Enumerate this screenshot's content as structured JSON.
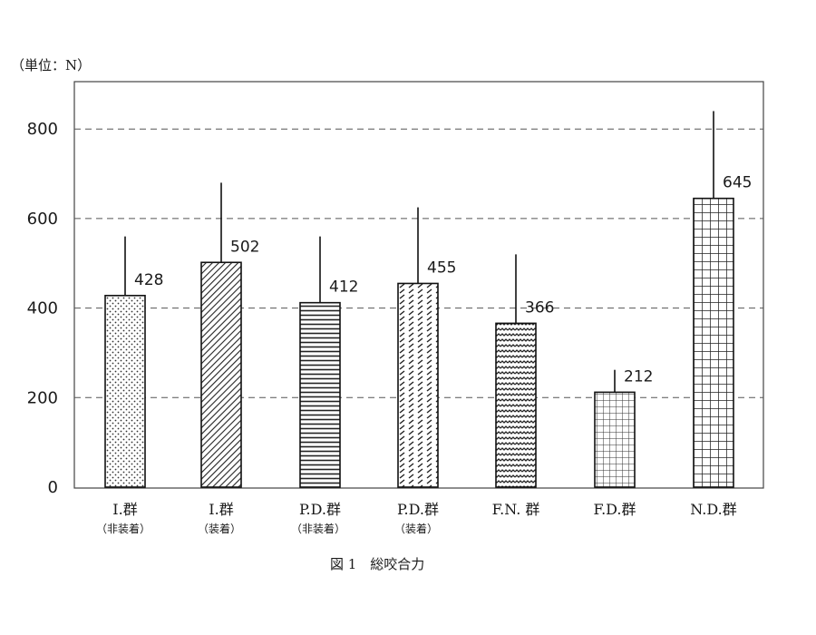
{
  "chart_data": {
    "type": "bar",
    "unit_label": "（単位：N）",
    "caption": "図 1　総咬合力",
    "ylim": [
      0,
      900
    ],
    "yticks": [
      0,
      200,
      400,
      600,
      800
    ],
    "grid": true,
    "categories": [
      {
        "label": "I.群",
        "sublabel": "（非装着）"
      },
      {
        "label": "I.群",
        "sublabel": "（装着）"
      },
      {
        "label": "P.D.群",
        "sublabel": "（非装着）"
      },
      {
        "label": "P.D.群",
        "sublabel": "（装着）"
      },
      {
        "label": "F.N. 群",
        "sublabel": ""
      },
      {
        "label": "F.D.群",
        "sublabel": ""
      },
      {
        "label": "N.D.群",
        "sublabel": ""
      }
    ],
    "values": [
      428,
      502,
      412,
      455,
      366,
      212,
      645
    ],
    "value_labels": [
      "428",
      "502",
      "412",
      "455",
      "366",
      "212",
      "645"
    ],
    "error_upper": [
      560,
      680,
      560,
      625,
      520,
      262,
      840
    ],
    "patterns": [
      "dots",
      "diagonal",
      "horizontal",
      "dashes",
      "waves",
      "smallgrid",
      "biggrid"
    ]
  }
}
